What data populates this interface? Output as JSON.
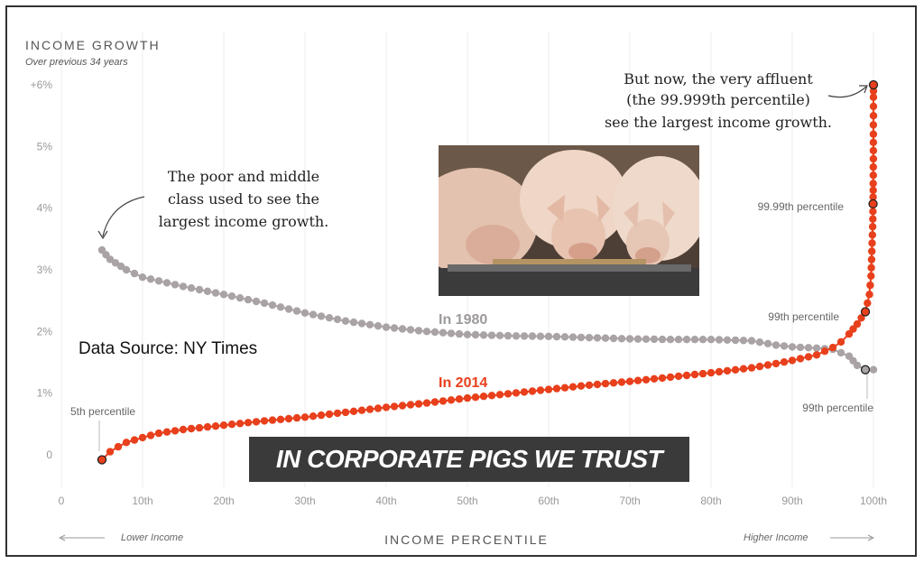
{
  "chart_data": {
    "type": "scatter",
    "title": "INCOME GROWTH",
    "subtitle": "Over previous 34 years",
    "xlabel": "INCOME PERCENTILE",
    "x_direction_left": "Lower Income",
    "x_direction_right": "Higher Income",
    "xlim": [
      0,
      100
    ],
    "ylim": [
      0,
      6
    ],
    "y_ticks": [
      {
        "value": 0,
        "label": "0"
      },
      {
        "value": 1,
        "label": "1%"
      },
      {
        "value": 2,
        "label": "2%"
      },
      {
        "value": 3,
        "label": "3%"
      },
      {
        "value": 4,
        "label": "4%"
      },
      {
        "value": 5,
        "label": "5%"
      },
      {
        "value": 6,
        "label": "+6%"
      }
    ],
    "x_ticks": [
      {
        "value": 0,
        "label": "0"
      },
      {
        "value": 10,
        "label": "10th"
      },
      {
        "value": 20,
        "label": "20th"
      },
      {
        "value": 30,
        "label": "30th"
      },
      {
        "value": 40,
        "label": "40th"
      },
      {
        "value": 50,
        "label": "50th"
      },
      {
        "value": 60,
        "label": "60th"
      },
      {
        "value": 70,
        "label": "70th"
      },
      {
        "value": 80,
        "label": "80th"
      },
      {
        "value": 90,
        "label": "90th"
      },
      {
        "value": 100,
        "label": "100th"
      }
    ],
    "series": [
      {
        "name": "In 1980",
        "color": "#a9a3a6",
        "x": [
          5,
          6,
          8,
          10,
          15,
          20,
          25,
          30,
          35,
          40,
          45,
          50,
          55,
          60,
          65,
          70,
          75,
          80,
          85,
          88,
          90,
          93,
          95,
          97,
          98,
          99,
          100
        ],
        "y": [
          3.32,
          3.17,
          3.0,
          2.88,
          2.73,
          2.6,
          2.46,
          2.3,
          2.17,
          2.07,
          2.0,
          1.95,
          1.93,
          1.92,
          1.9,
          1.88,
          1.87,
          1.87,
          1.85,
          1.78,
          1.75,
          1.73,
          1.71,
          1.6,
          1.45,
          1.38,
          1.38
        ]
      },
      {
        "name": "In 2014",
        "color": "#e8401c",
        "x": [
          5,
          6,
          7,
          8,
          10,
          12,
          15,
          20,
          25,
          30,
          35,
          40,
          45,
          50,
          55,
          60,
          65,
          70,
          75,
          80,
          85,
          88,
          90,
          93,
          95,
          96,
          97,
          98,
          99,
          99.5,
          99.7,
          99.8,
          99.9,
          99.95,
          99.97,
          99.99,
          99.993,
          99.995,
          99.997,
          99.999
        ],
        "y": [
          -0.08,
          0.05,
          0.13,
          0.2,
          0.28,
          0.35,
          0.41,
          0.48,
          0.55,
          0.61,
          0.69,
          0.77,
          0.84,
          0.92,
          0.99,
          1.06,
          1.13,
          1.19,
          1.26,
          1.33,
          1.41,
          1.48,
          1.53,
          1.62,
          1.74,
          1.83,
          1.96,
          2.12,
          2.32,
          2.6,
          2.9,
          3.3,
          3.7,
          4.07,
          4.4,
          4.8,
          5.2,
          5.5,
          5.8,
          6.0
        ]
      }
    ],
    "annotations": {
      "left_callout": [
        "The poor and middle",
        "class used to see the",
        "largest income growth."
      ],
      "right_callout": [
        "But now, the very affluent",
        "(the 99.999th percentile)",
        "see the largest income growth."
      ],
      "p5": "5th percentile",
      "p9999": "99.99th percentile",
      "p99_2014": "99th percentile",
      "p99_1980": "99th percentile"
    },
    "grid": "vertical",
    "legend": "inline labels"
  },
  "source_note": "Data Source: NY Times",
  "banner_text": "IN CORPORATE PIGS WE TRUST",
  "photo_description_icon": "pigs-photo"
}
